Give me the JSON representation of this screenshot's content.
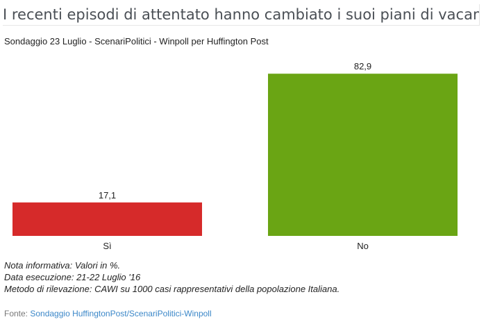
{
  "title": "I recenti episodi di attentato hanno cambiato i suoi piani di vacanze?",
  "subtitle": "Sondaggio 23 Luglio - ScenariPolitici - Winpoll per Huffington Post",
  "chart_data": {
    "type": "bar",
    "categories": [
      "Sì",
      "No"
    ],
    "values": [
      17.1,
      82.9
    ],
    "value_labels": [
      "17,1",
      "82,9"
    ],
    "colors": [
      "#d62a2a",
      "#6aa514"
    ],
    "ylim": [
      0,
      100
    ],
    "grid": false,
    "legend": "none"
  },
  "notes": [
    "Nota informativa: Valori in %.",
    "Data esecuzione: 21-22 Luglio '16",
    "Metodo di rilevazione: CAWI su 1000 casi rappresentativi della popolazione Italiana."
  ],
  "source": {
    "prefix": "Fonte: ",
    "link_text": "Sondaggio HuffingtonPost/ScenariPolitici-Winpoll"
  }
}
